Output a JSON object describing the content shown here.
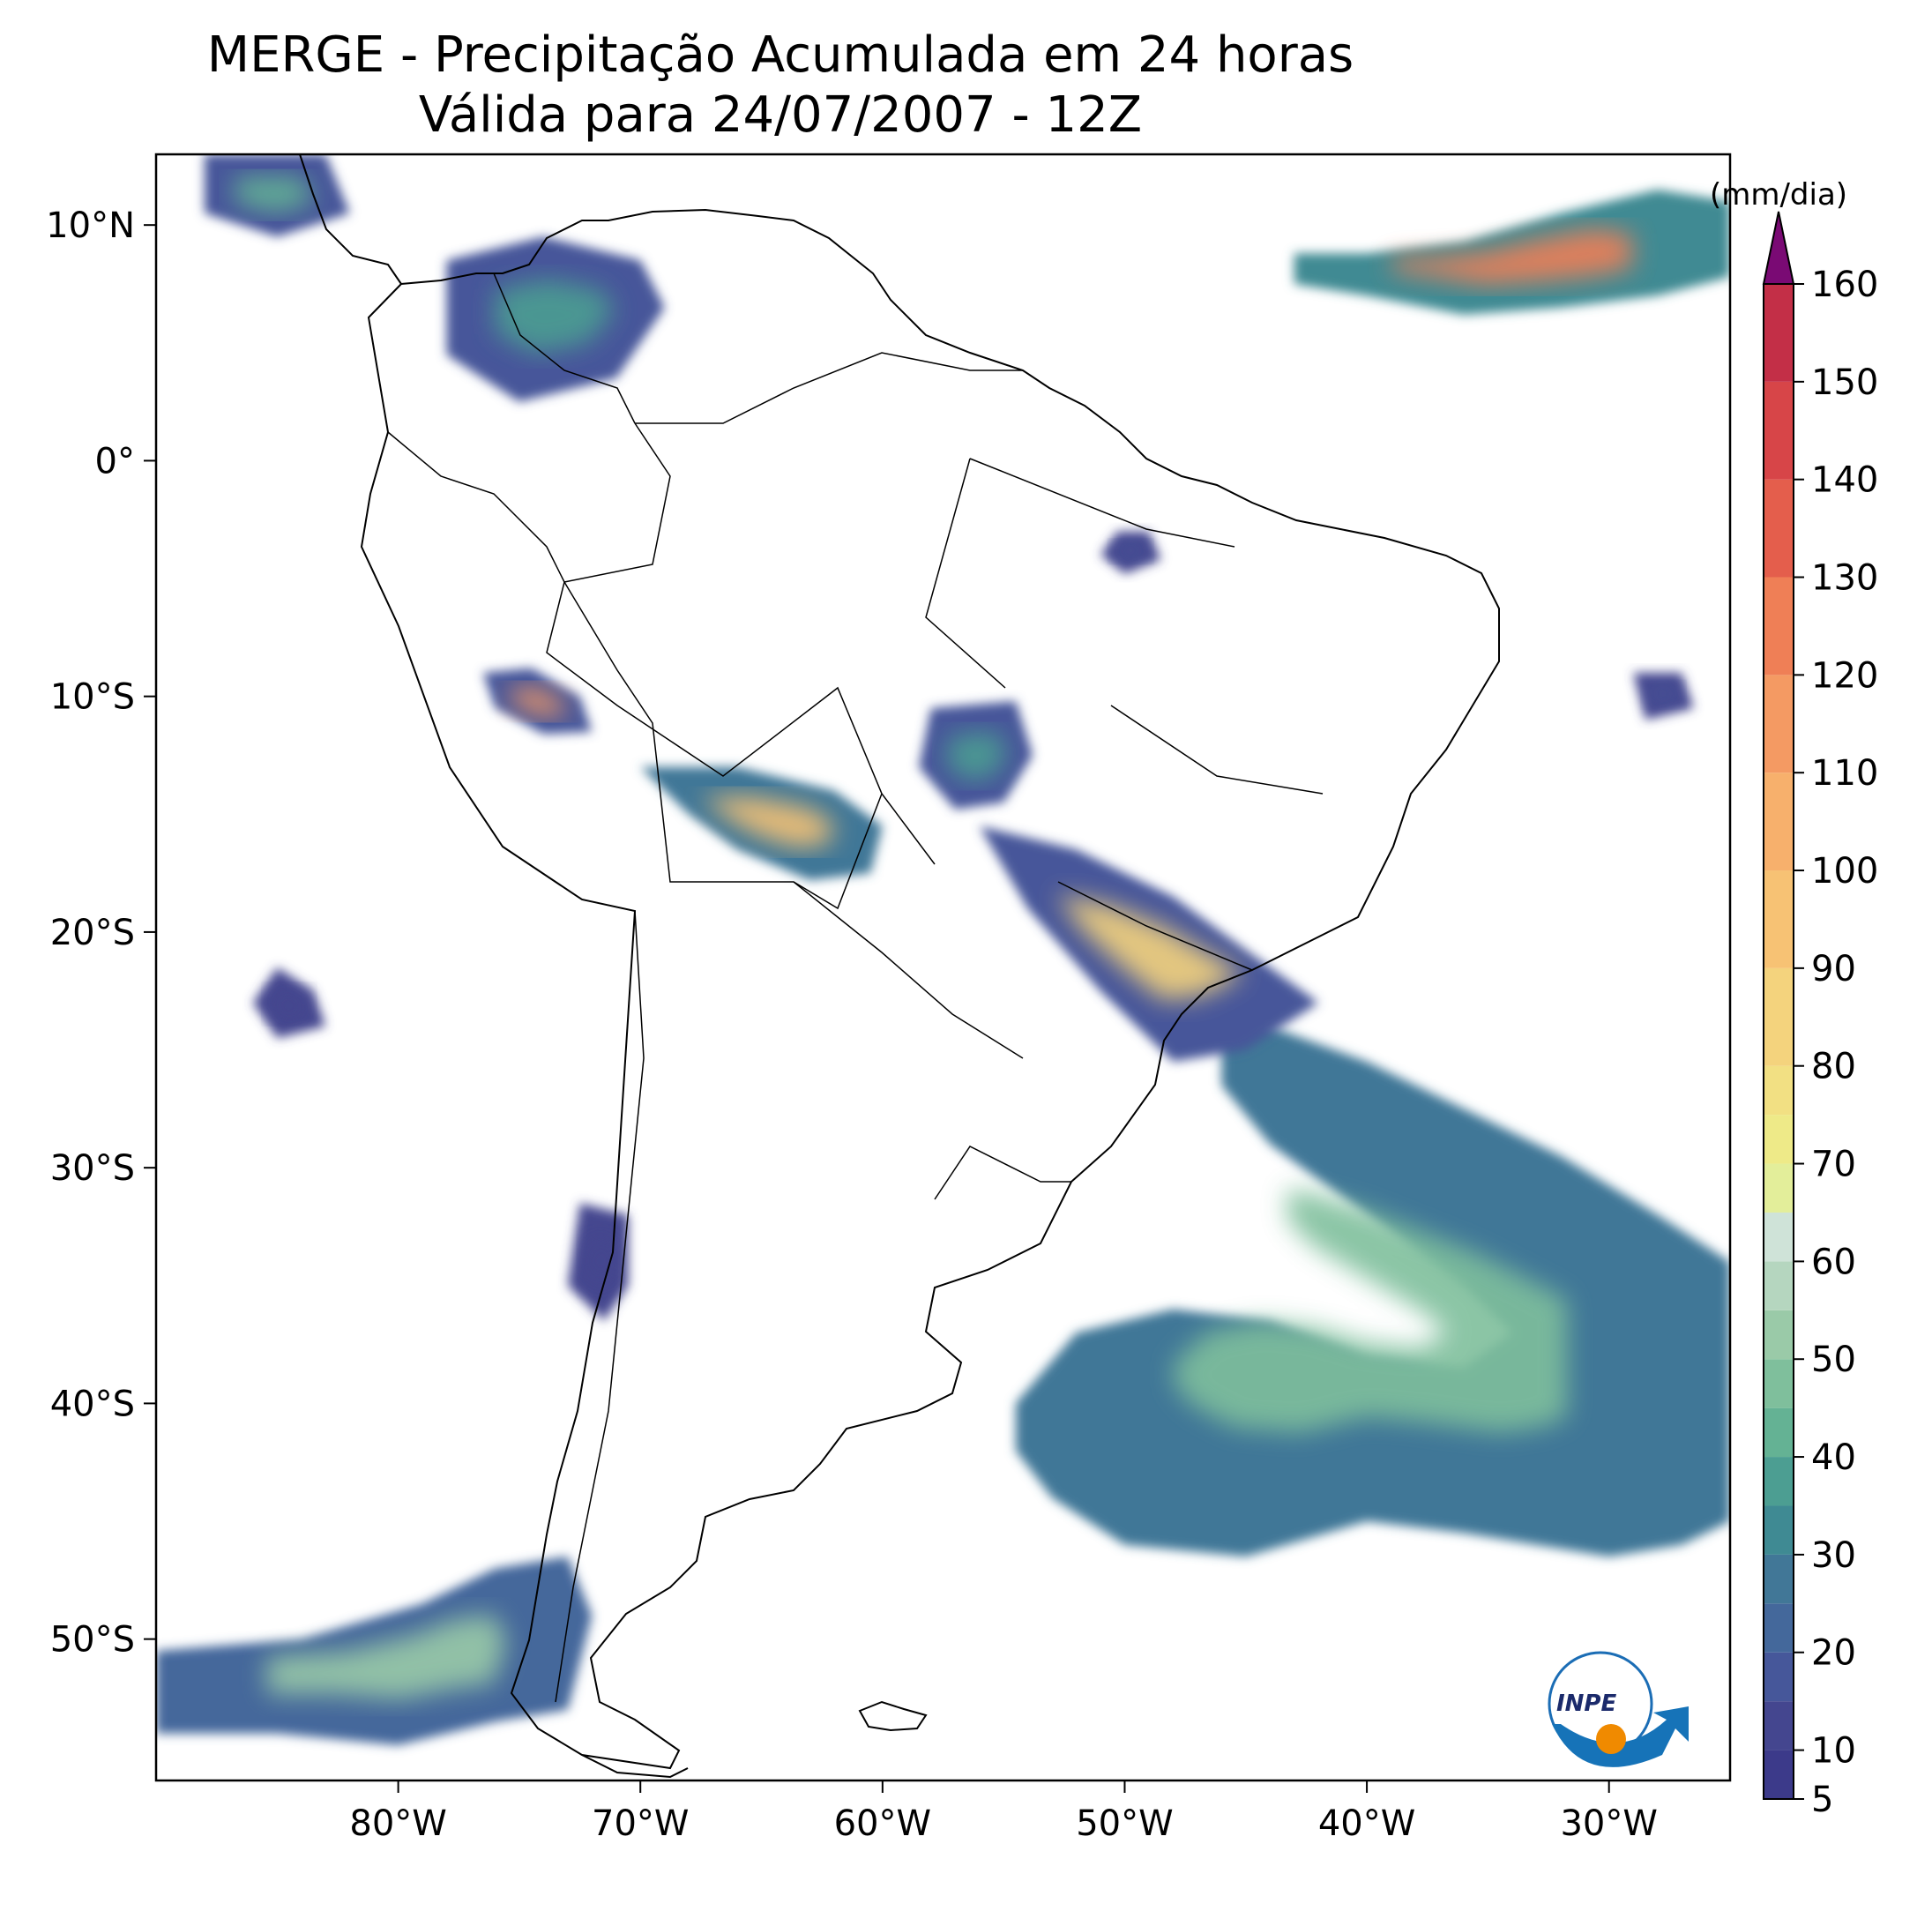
{
  "title": {
    "line1": "MERGE - Precipitação Acumulada em 24 horas",
    "line2": "Válida para 24/07/2007 - 12Z"
  },
  "map": {
    "lon_range": [
      -90,
      -25
    ],
    "lat_range": [
      -56,
      13
    ],
    "lon_ticks": [
      {
        "value": -80,
        "label": "80°W"
      },
      {
        "value": -70,
        "label": "70°W"
      },
      {
        "value": -60,
        "label": "60°W"
      },
      {
        "value": -50,
        "label": "50°W"
      },
      {
        "value": -40,
        "label": "40°W"
      },
      {
        "value": -30,
        "label": "30°W"
      }
    ],
    "lat_ticks": [
      {
        "value": 10,
        "label": "10°N"
      },
      {
        "value": 0,
        "label": "0°"
      },
      {
        "value": -10,
        "label": "10°S"
      },
      {
        "value": -20,
        "label": "20°S"
      },
      {
        "value": -30,
        "label": "30°S"
      },
      {
        "value": -40,
        "label": "40°S"
      },
      {
        "value": -50,
        "label": "50°S"
      }
    ]
  },
  "colorbar": {
    "unit": "(mm/dia)",
    "min": 5,
    "max": 160,
    "extend": "max",
    "extend_color": "#7a0a74",
    "stops": [
      {
        "value": 5,
        "color": "#3c3a8a"
      },
      {
        "value": 10,
        "color": "#44468f"
      },
      {
        "value": 15,
        "color": "#46579a"
      },
      {
        "value": 20,
        "color": "#44689b"
      },
      {
        "value": 25,
        "color": "#417797"
      },
      {
        "value": 30,
        "color": "#3f8a93"
      },
      {
        "value": 35,
        "color": "#4c9e92"
      },
      {
        "value": 40,
        "color": "#64b294"
      },
      {
        "value": 45,
        "color": "#7fbf9c"
      },
      {
        "value": 50,
        "color": "#9acaa8"
      },
      {
        "value": 55,
        "color": "#b5d6bf"
      },
      {
        "value": 60,
        "color": "#cfe3d8"
      },
      {
        "value": 65,
        "color": "#e3ee9a"
      },
      {
        "value": 70,
        "color": "#eeea88"
      },
      {
        "value": 75,
        "color": "#f2e083"
      },
      {
        "value": 80,
        "color": "#f4d37d"
      },
      {
        "value": 90,
        "color": "#f7c274"
      },
      {
        "value": 100,
        "color": "#f7b06c"
      },
      {
        "value": 110,
        "color": "#f49a63"
      },
      {
        "value": 120,
        "color": "#ef7f56"
      },
      {
        "value": 130,
        "color": "#e45e4c"
      },
      {
        "value": 140,
        "color": "#d74548"
      },
      {
        "value": 150,
        "color": "#c32f47"
      },
      {
        "value": 160,
        "color": "#a51c46"
      }
    ],
    "ticks": [
      {
        "value": 5,
        "label": "5"
      },
      {
        "value": 10,
        "label": "10"
      },
      {
        "value": 20,
        "label": "20"
      },
      {
        "value": 30,
        "label": "30"
      },
      {
        "value": 40,
        "label": "40"
      },
      {
        "value": 50,
        "label": "50"
      },
      {
        "value": 60,
        "label": "60"
      },
      {
        "value": 70,
        "label": "70"
      },
      {
        "value": 80,
        "label": "80"
      },
      {
        "value": 90,
        "label": "90"
      },
      {
        "value": 100,
        "label": "100"
      },
      {
        "value": 110,
        "label": "110"
      },
      {
        "value": 120,
        "label": "120"
      },
      {
        "value": 130,
        "label": "130"
      },
      {
        "value": 140,
        "label": "140"
      },
      {
        "value": 150,
        "label": "150"
      },
      {
        "value": 160,
        "label": "160"
      }
    ]
  },
  "precip_regions": [
    {
      "name": "south-atlantic-front",
      "value": 25,
      "core": 45,
      "points": [
        [
          -46,
          -23.5
        ],
        [
          -44,
          -24
        ],
        [
          -40,
          -25.5
        ],
        [
          -36,
          -27.5
        ],
        [
          -32,
          -29.5
        ],
        [
          -28,
          -32
        ],
        [
          -25,
          -34
        ],
        [
          -25,
          -45
        ],
        [
          -27,
          -46
        ],
        [
          -30,
          -46.5
        ],
        [
          -33,
          -46
        ],
        [
          -36,
          -45.5
        ],
        [
          -40,
          -45
        ],
        [
          -45,
          -46.5
        ],
        [
          -50,
          -46
        ],
        [
          -53,
          -44
        ],
        [
          -54.5,
          -42
        ],
        [
          -54.5,
          -40
        ],
        [
          -52,
          -37
        ],
        [
          -48,
          -36
        ],
        [
          -44,
          -36.5
        ],
        [
          -40,
          -38
        ],
        [
          -36,
          -38.5
        ],
        [
          -34,
          -37
        ],
        [
          -36,
          -35
        ],
        [
          -40,
          -32
        ],
        [
          -44,
          -29
        ],
        [
          -46,
          -26.5
        ]
      ]
    },
    {
      "name": "drake-band",
      "value": 22,
      "core": 50,
      "points": [
        [
          -90,
          -50.5
        ],
        [
          -84,
          -50
        ],
        [
          -79,
          -48.5
        ],
        [
          -76,
          -47
        ],
        [
          -73,
          -46.5
        ],
        [
          -72,
          -49
        ],
        [
          -73,
          -53
        ],
        [
          -76,
          -53.5
        ],
        [
          -80,
          -54.5
        ],
        [
          -85,
          -54
        ],
        [
          -90,
          -54
        ]
      ]
    },
    {
      "name": "itcz-atlantic",
      "value": 30,
      "core": 120,
      "points": [
        [
          -43,
          7.5
        ],
        [
          -40,
          7
        ],
        [
          -36,
          6.2
        ],
        [
          -32,
          6.5
        ],
        [
          -28,
          7
        ],
        [
          -25,
          7.8
        ],
        [
          -25,
          11
        ],
        [
          -28,
          11.5
        ],
        [
          -32,
          10.5
        ],
        [
          -36,
          9.3
        ],
        [
          -40,
          8.8
        ],
        [
          -43,
          8.8
        ]
      ]
    },
    {
      "name": "bolivia-cluster",
      "value": 25,
      "core": 95,
      "points": [
        [
          -70,
          -13
        ],
        [
          -66,
          -13
        ],
        [
          -62,
          -14
        ],
        [
          -60,
          -15.5
        ],
        [
          -60.5,
          -17.5
        ],
        [
          -63,
          -17.8
        ],
        [
          -66,
          -16.5
        ],
        [
          -68,
          -15
        ]
      ]
    },
    {
      "name": "mato-grosso-cluster",
      "value": 15,
      "core": 35,
      "points": [
        [
          -58,
          -10.5
        ],
        [
          -54.5,
          -10.2
        ],
        [
          -53.8,
          -12.5
        ],
        [
          -55,
          -14.5
        ],
        [
          -57,
          -14.8
        ],
        [
          -58.5,
          -13
        ]
      ]
    },
    {
      "name": "southeast-brazil-band",
      "value": 15,
      "core": 80,
      "points": [
        [
          -56,
          -15.5
        ],
        [
          -52,
          -16.5
        ],
        [
          -48,
          -18.5
        ],
        [
          -44,
          -21.5
        ],
        [
          -42,
          -23
        ],
        [
          -45,
          -25
        ],
        [
          -48,
          -25.5
        ],
        [
          -51,
          -22.5
        ],
        [
          -54,
          -19
        ]
      ]
    },
    {
      "name": "central-chile",
      "value": 10,
      "core": 12,
      "points": [
        [
          -72.5,
          -31.5
        ],
        [
          -70.5,
          -32
        ],
        [
          -70.5,
          -35
        ],
        [
          -71.5,
          -36.5
        ],
        [
          -73,
          -35
        ]
      ]
    },
    {
      "name": "pacific-cell",
      "value": 10,
      "core": 14,
      "points": [
        [
          -85,
          -21.5
        ],
        [
          -83.5,
          -22.5
        ],
        [
          -83,
          -24
        ],
        [
          -85,
          -24.5
        ],
        [
          -86,
          -23
        ]
      ]
    },
    {
      "name": "peru-cluster",
      "value": 18,
      "core": 110,
      "points": [
        [
          -76.5,
          -9
        ],
        [
          -74.5,
          -8.8
        ],
        [
          -72.5,
          -10
        ],
        [
          -72,
          -11.5
        ],
        [
          -74,
          -11.6
        ],
        [
          -76,
          -10.5
        ]
      ]
    },
    {
      "name": "colombia-cluster",
      "value": 15,
      "core": 35,
      "points": [
        [
          -78,
          8.5
        ],
        [
          -74,
          9.5
        ],
        [
          -70,
          8.5
        ],
        [
          -69,
          6.5
        ],
        [
          -71,
          3.5
        ],
        [
          -75,
          2.5
        ],
        [
          -78,
          4.5
        ]
      ]
    },
    {
      "name": "caribbean-cluster",
      "value": 15,
      "core": 40,
      "points": [
        [
          -88,
          13
        ],
        [
          -83,
          13
        ],
        [
          -82,
          10.5
        ],
        [
          -85,
          9.5
        ],
        [
          -88,
          10.5
        ]
      ]
    },
    {
      "name": "amazon-cell",
      "value": 12,
      "core": 15,
      "points": [
        [
          -50.3,
          -3
        ],
        [
          -49,
          -3
        ],
        [
          -48.5,
          -4.2
        ],
        [
          -50,
          -4.8
        ],
        [
          -51,
          -4
        ]
      ]
    },
    {
      "name": "northeast-coast-cell",
      "value": 10,
      "core": 15,
      "points": [
        [
          -29,
          -9
        ],
        [
          -27,
          -9
        ],
        [
          -26.5,
          -10.5
        ],
        [
          -28.5,
          -11
        ]
      ]
    }
  ],
  "logo": {
    "text": "INPE"
  }
}
